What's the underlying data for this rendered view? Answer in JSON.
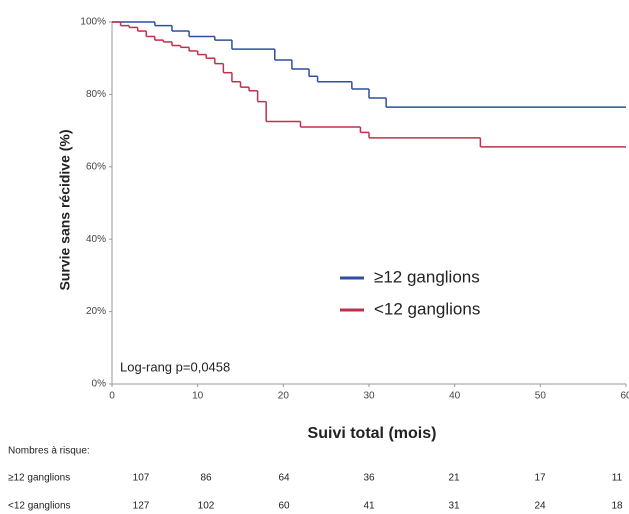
{
  "chart_data": {
    "type": "step",
    "y_label": "Survie sans récidive (%)",
    "x_label": "Suivi total (mois)",
    "annotation": "Log-rang p=0,0458",
    "xlim": [
      0,
      60
    ],
    "ylim": [
      0,
      100
    ],
    "xticks": [
      0,
      10,
      20,
      30,
      40,
      50,
      60
    ],
    "yticks": [
      {
        "value": 0,
        "label": "0%"
      },
      {
        "value": 20,
        "label": "20%"
      },
      {
        "value": 40,
        "label": "40%"
      },
      {
        "value": 60,
        "label": "60%"
      },
      {
        "value": 80,
        "label": "80%"
      },
      {
        "value": 100,
        "label": "100%"
      }
    ],
    "grid": false,
    "legend": "center-right",
    "series": [
      {
        "name": "≥12 ganglions",
        "color": "#2d4fa0",
        "x": [
          0,
          5,
          7,
          9,
          12,
          14,
          19,
          21,
          23,
          24,
          28,
          30,
          32
        ],
        "values": [
          100,
          99,
          97.5,
          96,
          95,
          92.5,
          89.5,
          87,
          85,
          83.5,
          81.5,
          79,
          76.5
        ]
      },
      {
        "name": "<12 ganglions",
        "color": "#c0304a",
        "x": [
          0,
          1,
          2,
          3,
          4,
          5,
          6,
          7,
          8,
          9,
          10,
          11,
          12,
          13,
          14,
          15,
          16,
          17,
          18,
          22,
          29,
          30,
          43
        ],
        "values": [
          100,
          99,
          98.5,
          97.5,
          96,
          95,
          94.5,
          93.5,
          93,
          92,
          91,
          90,
          88.5,
          86,
          83.5,
          82,
          81,
          78,
          72.5,
          71,
          69.5,
          68,
          65.5
        ]
      }
    ],
    "risk_table": {
      "title": "Nombres à risque:",
      "rows": [
        {
          "name": "≥12 ganglions",
          "values": [
            107,
            86,
            64,
            36,
            21,
            17,
            11
          ]
        },
        {
          "name": "<12 ganglions",
          "values": [
            127,
            102,
            60,
            41,
            31,
            24,
            18
          ]
        }
      ]
    }
  }
}
